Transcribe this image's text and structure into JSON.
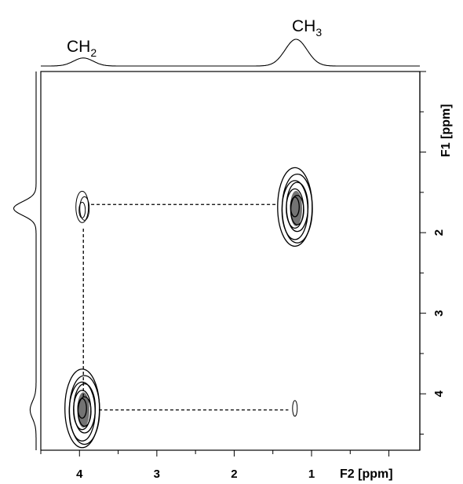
{
  "chart_data": {
    "type": "scatter",
    "subtype": "2D NMR contour plot (COSY)",
    "x_axis": {
      "label": "F2 [ppm]",
      "range": [
        4.5,
        -0.4
      ],
      "ticks": [
        4,
        3,
        2,
        1
      ],
      "reversed": true
    },
    "y_axis": {
      "label": "F1 [ppm]",
      "range": [
        0.0,
        4.7
      ],
      "ticks": [
        2,
        3,
        4
      ],
      "reversed": true,
      "position": "right"
    },
    "grid": false,
    "projection_labels": [
      {
        "base": "CH",
        "sub": "2",
        "f2": 3.95
      },
      {
        "base": "CH",
        "sub": "3",
        "f2": 1.2
      }
    ],
    "cross_peaks": [
      {
        "name": "CH3 diagonal",
        "f2": 1.2,
        "f1": 1.7,
        "size": "large"
      },
      {
        "name": "CH2 / CH3 cross peak",
        "f2": 3.95,
        "f1": 1.7,
        "size": "small"
      },
      {
        "name": "CH2 diagonal",
        "f2": 3.95,
        "f1": 4.2,
        "size": "large"
      },
      {
        "name": "CH3 / CH2 cross peak",
        "f2": 1.2,
        "f1": 4.2,
        "size": "faint"
      }
    ],
    "correlation_lines": [
      {
        "from": [
          3.85,
          1.65
        ],
        "to": [
          1.45,
          1.65
        ]
      },
      {
        "from": [
          3.95,
          1.95
        ],
        "to": [
          3.95,
          4.05
        ]
      },
      {
        "from": [
          3.75,
          4.2
        ],
        "to": [
          1.3,
          4.2
        ]
      }
    ],
    "projection_f2_peaks": [
      {
        "f2": 3.95,
        "height": 0.3,
        "width": 0.18
      },
      {
        "f2": 1.2,
        "height": 1.0,
        "width": 0.2
      }
    ],
    "projection_f1_peaks": [
      {
        "f1": 1.7,
        "height": 0.75,
        "width": 0.12
      },
      {
        "f1": 4.2,
        "height": 0.2,
        "width": 0.15
      }
    ],
    "colors": {
      "line": "#000000",
      "background": "#ffffff"
    }
  }
}
